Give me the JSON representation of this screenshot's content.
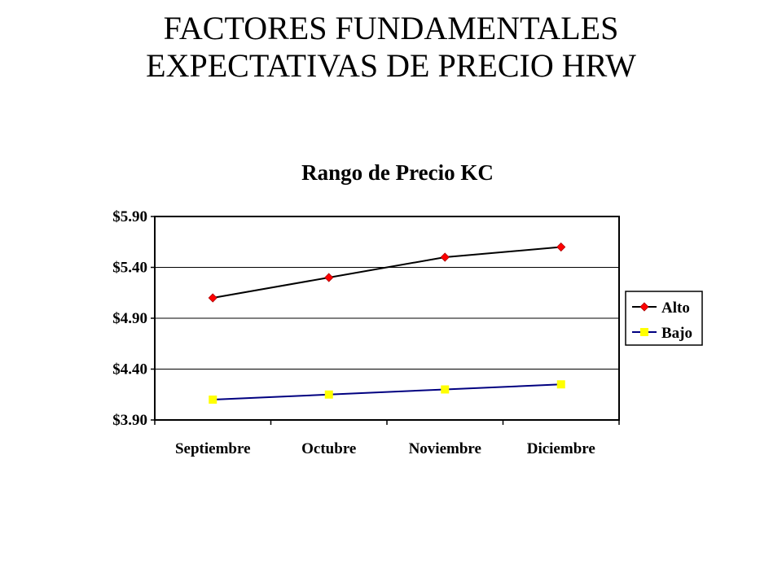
{
  "slide": {
    "title_line1": "FACTORES FUNDAMENTALES",
    "title_line2": "EXPECTATIVAS DE PRECIO HRW"
  },
  "chart_data": {
    "type": "line",
    "title": "Rango de Precio KC",
    "xlabel": "",
    "ylabel": "",
    "categories": [
      "Septiembre",
      "Octubre",
      "Noviembre",
      "Diciembre"
    ],
    "series": [
      {
        "name": "Alto",
        "values": [
          5.1,
          5.3,
          5.5,
          5.6
        ],
        "line_color": "#000000",
        "marker": "diamond",
        "marker_color": "#ff0000"
      },
      {
        "name": "Bajo",
        "values": [
          4.1,
          4.15,
          4.2,
          4.25
        ],
        "line_color": "#000080",
        "marker": "square",
        "marker_color": "#ffff00"
      }
    ],
    "ylim": [
      3.9,
      5.9
    ],
    "yticks": [
      3.9,
      4.4,
      4.9,
      5.4,
      5.9
    ],
    "ytick_labels": [
      "$3.90",
      "$4.40",
      "$4.90",
      "$5.40",
      "$5.90"
    ],
    "grid": true,
    "legend_position": "right"
  }
}
